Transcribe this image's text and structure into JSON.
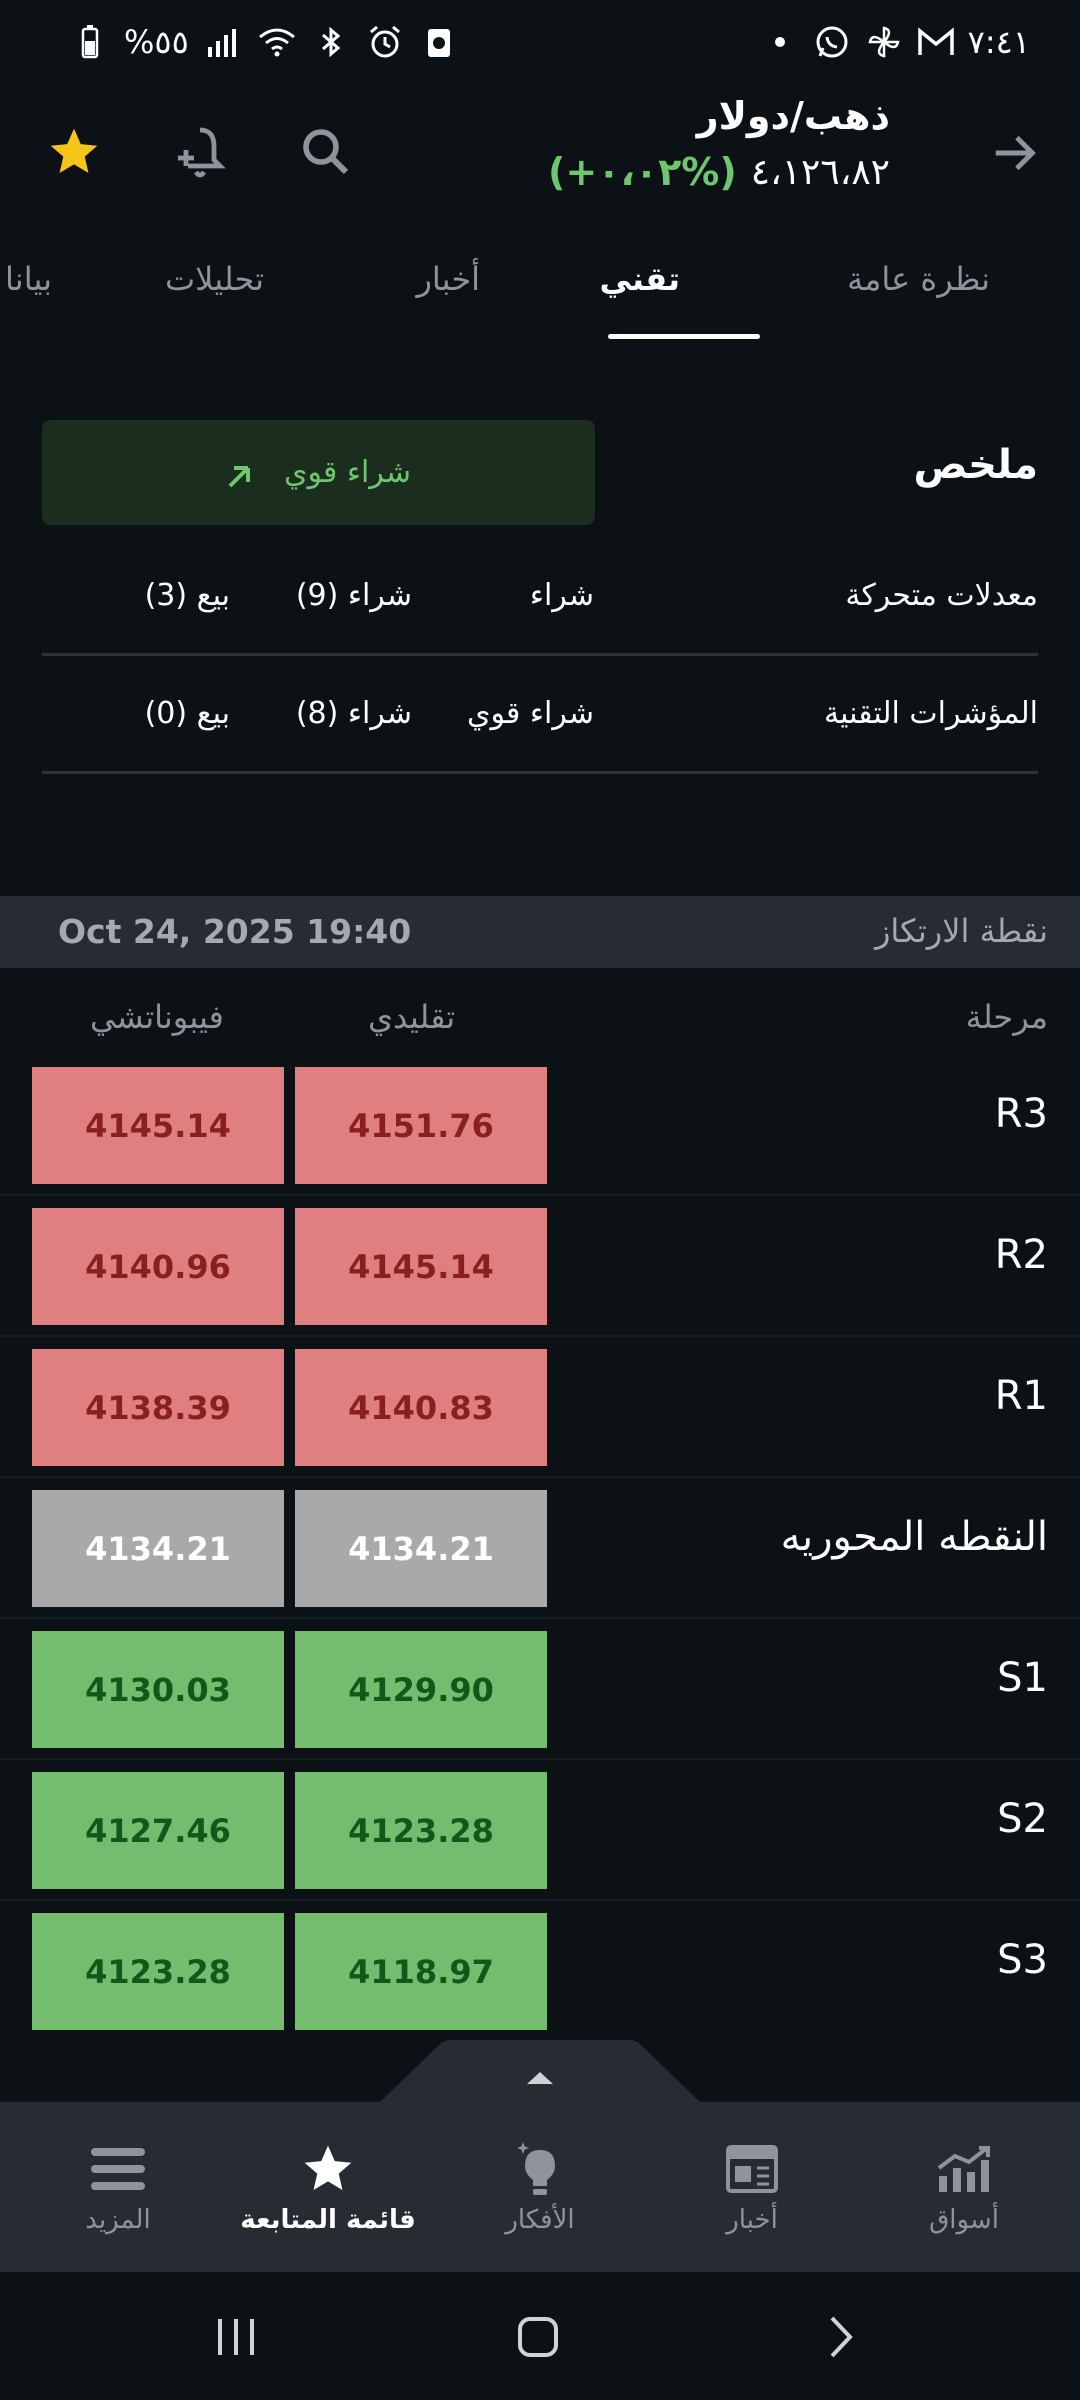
{
  "status_bar": {
    "time": "٧:٤١",
    "battery": "%٥٥",
    "icons": [
      "whatsapp-icon",
      "pinwheel-icon",
      "gmail-icon",
      "dot-icon",
      "battery-icon",
      "signal-icon",
      "wifi-icon",
      "bluetooth-icon",
      "alarm-icon",
      "saver-icon"
    ]
  },
  "header": {
    "title": "ذهب/دولار",
    "price": "٤،١٢٦،٨٢",
    "change": "(+٠،٠٢%)",
    "change_color": "#6ec66f"
  },
  "tabs": [
    {
      "label": "نظرة عامة",
      "active": false
    },
    {
      "label": "تقني",
      "active": true
    },
    {
      "label": "أخبار",
      "active": false
    },
    {
      "label": "تحليلات",
      "active": false
    },
    {
      "label": "بيانا",
      "active": false
    }
  ],
  "summary": {
    "title": "ملخص",
    "badge": "شراء قوي",
    "rows": [
      {
        "name": "معدلات متحركة",
        "signal": "شراء",
        "buy": "شراء (9)",
        "sell": "بيع (3)"
      },
      {
        "name": "المؤشرات التقنية",
        "signal": "شراء قوي",
        "buy": "شراء (8)",
        "sell": "بيع (0)"
      }
    ]
  },
  "pivot": {
    "label": "نقطة الارتكاز",
    "date": "Oct 24, 2025 19:40",
    "headers": {
      "level": "مرحلة",
      "classic": "تقليدي",
      "fibonacci": "فيبوناتشي"
    },
    "rows": [
      {
        "level": "R3",
        "classic": "4151.76",
        "fibonacci": "4145.14",
        "tone": "red"
      },
      {
        "level": "R2",
        "classic": "4145.14",
        "fibonacci": "4140.96",
        "tone": "red"
      },
      {
        "level": "R1",
        "classic": "4140.83",
        "fibonacci": "4138.39",
        "tone": "red"
      },
      {
        "level": "النقطه المحوريه",
        "classic": "4134.21",
        "fibonacci": "4134.21",
        "tone": "gray"
      },
      {
        "level": "S1",
        "classic": "4129.90",
        "fibonacci": "4130.03",
        "tone": "green"
      },
      {
        "level": "S2",
        "classic": "4123.28",
        "fibonacci": "4127.46",
        "tone": "green"
      },
      {
        "level": "S3",
        "classic": "4118.97",
        "fibonacci": "4123.28",
        "tone": "green"
      }
    ]
  },
  "bottom_nav": [
    {
      "label": "أسواق",
      "icon": "markets-icon",
      "active": false
    },
    {
      "label": "أخبار",
      "icon": "news-icon",
      "active": false
    },
    {
      "label": "الأفكار",
      "icon": "ideas-icon",
      "active": false
    },
    {
      "label": "قائمة المتابعة",
      "icon": "star-icon",
      "active": true
    },
    {
      "label": "المزيد",
      "icon": "menu-icon",
      "active": false
    }
  ],
  "colors": {
    "background": "#0c1115",
    "accent_green": "#6ec66f",
    "star_gold": "#f5c518"
  }
}
